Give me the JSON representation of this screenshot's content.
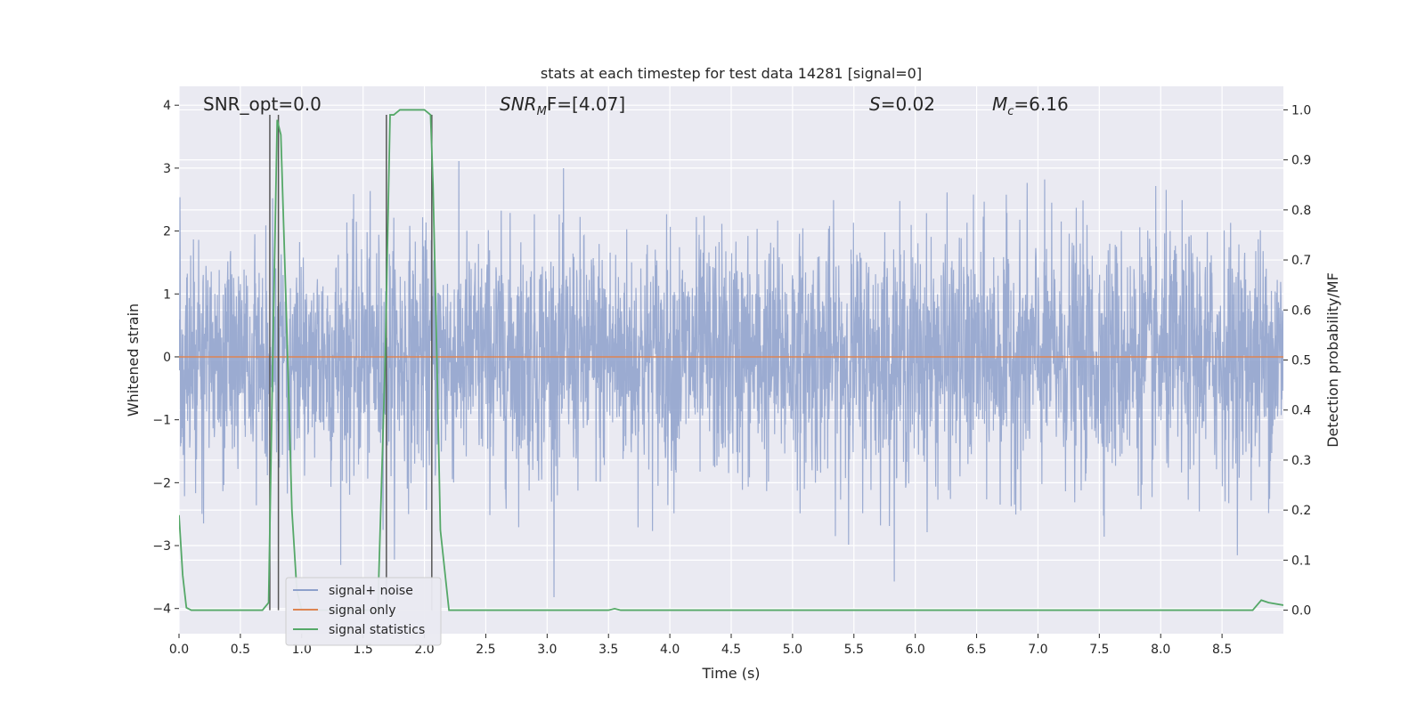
{
  "chart_data": {
    "type": "line",
    "title": "stats at each timestep for test data 14281 [signal=0]",
    "xlabel": "Time (s)",
    "ylabel_left": "Whitened strain",
    "ylabel_right": "Detection probability/MF",
    "xlim": [
      0.0,
      9.0
    ],
    "ylim_left": [
      -4.4,
      4.3
    ],
    "ylim_right": [
      -0.047,
      1.047
    ],
    "x_ticks": [
      0.0,
      0.5,
      1.0,
      1.5,
      2.0,
      2.5,
      3.0,
      3.5,
      4.0,
      4.5,
      5.0,
      5.5,
      6.0,
      6.5,
      7.0,
      7.5,
      8.0,
      8.5
    ],
    "x_tick_labels": [
      "0.0",
      "0.5",
      "1.0",
      "1.5",
      "2.0",
      "2.5",
      "3.0",
      "3.5",
      "4.0",
      "4.5",
      "5.0",
      "5.5",
      "6.0",
      "6.5",
      "7.0",
      "7.5",
      "8.0",
      "8.5"
    ],
    "y_left_ticks": [
      -4,
      -3,
      -2,
      -1,
      0,
      1,
      2,
      3,
      4
    ],
    "y_left_tick_labels": [
      "−4",
      "−3",
      "−2",
      "−1",
      "0",
      "1",
      "2",
      "3",
      "4"
    ],
    "y_right_ticks": [
      0.0,
      0.1,
      0.2,
      0.3,
      0.4,
      0.5,
      0.6,
      0.7,
      0.8,
      0.9,
      1.0
    ],
    "y_right_tick_labels": [
      "0.0",
      "0.1",
      "0.2",
      "0.3",
      "0.4",
      "0.5",
      "0.6",
      "0.7",
      "0.8",
      "0.9",
      "1.0"
    ],
    "grid": true,
    "legend_position": "bottom-left",
    "annotations": {
      "snr_opt": "SNR_opt=0.0",
      "snr_mf_base": "SNR",
      "snr_mf_sub": "M",
      "snr_mf_rest": "F=[4.07]",
      "s_italic": "S",
      "s_value": "=0.02",
      "mc_base": "M",
      "mc_sub": "c",
      "mc_value": "=6.16"
    },
    "series": [
      {
        "name": "signal+ noise",
        "color": "#8da0cb",
        "axis": "left",
        "kind": "noise",
        "x_range": [
          0.0,
          9.0
        ],
        "approx_amplitude": 1.5,
        "approx_peak_abs": 4.0
      },
      {
        "name": "signal only",
        "color": "#dd8452",
        "axis": "left",
        "x": [
          0.0,
          9.0
        ],
        "y": [
          0.0,
          0.0
        ]
      },
      {
        "name": "signal statistics",
        "color": "#55a868",
        "axis": "right",
        "x": [
          0.0,
          0.03,
          0.06,
          0.1,
          0.3,
          0.5,
          0.68,
          0.73,
          0.76,
          0.8,
          0.83,
          0.88,
          0.92,
          0.96,
          1.0,
          1.05,
          1.62,
          1.68,
          1.72,
          1.75,
          1.8,
          1.9,
          2.0,
          2.05,
          2.07,
          2.1,
          2.13,
          2.2,
          2.4,
          3.5,
          3.55,
          3.6,
          4.0,
          8.75,
          8.82,
          8.88,
          9.0
        ],
        "y": [
          0.19,
          0.07,
          0.005,
          0.0,
          0.0,
          0.0,
          0.0,
          0.015,
          0.45,
          0.98,
          0.95,
          0.55,
          0.2,
          0.04,
          0.0,
          0.0,
          0.0,
          0.5,
          0.99,
          0.99,
          1.0,
          1.0,
          1.0,
          0.99,
          0.85,
          0.52,
          0.16,
          0.0,
          0.0,
          0.0,
          0.003,
          0.0,
          0.0,
          0.0,
          0.02,
          0.015,
          0.01
        ]
      }
    ],
    "vertical_markers": [
      0.74,
      0.81,
      1.69,
      2.06
    ]
  }
}
